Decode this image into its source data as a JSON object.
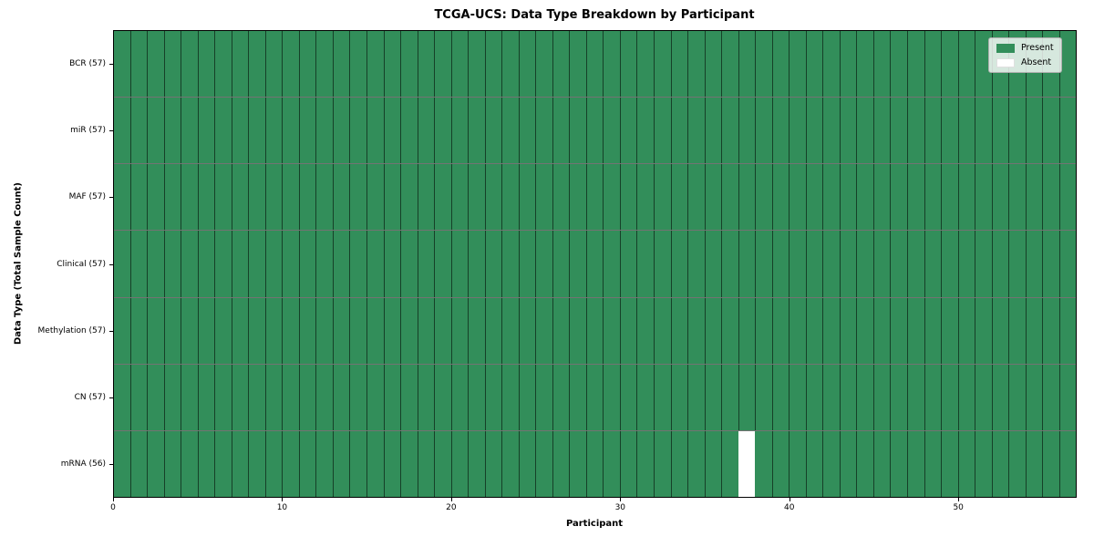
{
  "chart_data": {
    "type": "heatmap",
    "title": "TCGA-UCS: Data Type Breakdown by Participant",
    "xlabel": "Participant",
    "ylabel": "Data Type (Total Sample Count)",
    "x_ticks": [
      0,
      10,
      20,
      30,
      40,
      50
    ],
    "x_range": [
      0,
      57
    ],
    "n_participants": 57,
    "rows": [
      {
        "label": "BCR (57)",
        "data_type": "BCR",
        "present_count": 57,
        "absent_participants": []
      },
      {
        "label": "miR (57)",
        "data_type": "miR",
        "present_count": 57,
        "absent_participants": []
      },
      {
        "label": "MAF (57)",
        "data_type": "MAF",
        "present_count": 57,
        "absent_participants": []
      },
      {
        "label": "Clinical (57)",
        "data_type": "Clinical",
        "present_count": 57,
        "absent_participants": []
      },
      {
        "label": "Methylation (57)",
        "data_type": "Methylation",
        "present_count": 57,
        "absent_participants": []
      },
      {
        "label": "CN (57)",
        "data_type": "CN",
        "present_count": 57,
        "absent_participants": []
      },
      {
        "label": "mRNA (56)",
        "data_type": "mRNA",
        "present_count": 56,
        "absent_participants": [
          37
        ]
      }
    ],
    "legend": [
      {
        "label": "Present",
        "color": "#328e5a"
      },
      {
        "label": "Absent",
        "color": "#ffffff"
      }
    ],
    "colors": {
      "present": "#328e5a",
      "absent": "#ffffff",
      "cell_border": "rgba(0,0,0,0.55)",
      "spine": "#000000"
    },
    "legend_position": "upper right",
    "grid": "cell borders only"
  }
}
